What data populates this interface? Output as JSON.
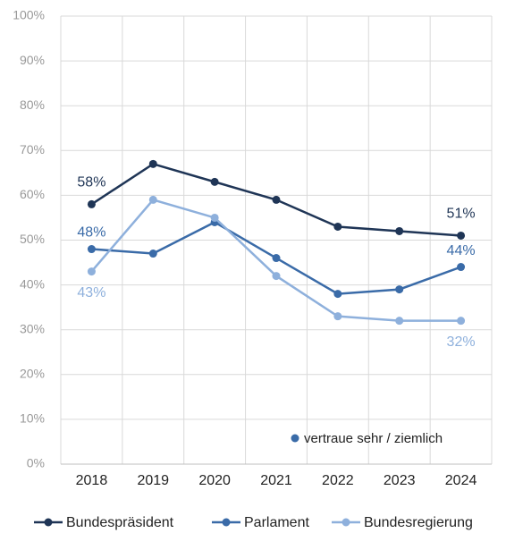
{
  "chart_data": {
    "type": "line",
    "categories": [
      "2018",
      "2019",
      "2020",
      "2021",
      "2022",
      "2023",
      "2024"
    ],
    "series": [
      {
        "name": "Bundespräsident",
        "color": "#1f3556",
        "values": [
          58,
          67,
          63,
          59,
          53,
          52,
          51
        ],
        "value_labels": [
          "58%",
          null,
          null,
          null,
          null,
          null,
          "51%"
        ]
      },
      {
        "name": "Parlament",
        "color": "#3a6ba8",
        "values": [
          48,
          47,
          54,
          46,
          38,
          39,
          44
        ],
        "value_labels": [
          "48%",
          null,
          null,
          null,
          null,
          null,
          "44%"
        ]
      },
      {
        "name": "Bundesregierung",
        "color": "#8eb0dc",
        "values": [
          43,
          59,
          55,
          42,
          33,
          32,
          32
        ],
        "value_labels": [
          "43%",
          null,
          null,
          null,
          null,
          null,
          "32%"
        ]
      }
    ],
    "annotation": "vertraue sehr / ziemlich",
    "ylim": [
      0,
      100
    ],
    "yticks": [
      {
        "value": 0,
        "label": "0%"
      },
      {
        "value": 10,
        "label": "10%"
      },
      {
        "value": 20,
        "label": "20%"
      },
      {
        "value": 30,
        "label": "30%"
      },
      {
        "value": 40,
        "label": "40%"
      },
      {
        "value": 50,
        "label": "50%"
      },
      {
        "value": 60,
        "label": "60%"
      },
      {
        "value": 70,
        "label": "70%"
      },
      {
        "value": 80,
        "label": "80%"
      },
      {
        "value": 90,
        "label": "90%"
      },
      {
        "value": 100,
        "label": "100%"
      }
    ],
    "grid": true,
    "legend": "bottom"
  }
}
